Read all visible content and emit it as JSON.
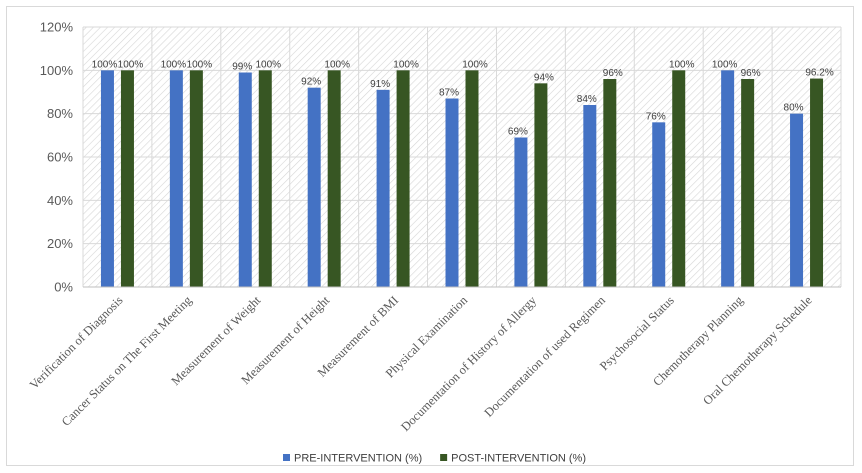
{
  "chart_data": {
    "type": "bar",
    "title": "",
    "xlabel": "",
    "ylabel": "",
    "ylim": [
      0,
      120
    ],
    "yticks": [
      0,
      20,
      40,
      60,
      80,
      100,
      120
    ],
    "ytick_labels": [
      "0%",
      "20%",
      "40%",
      "60%",
      "80%",
      "100%",
      "120%"
    ],
    "grid": true,
    "legend_position": "bottom",
    "categories": [
      "Verification of Diagnosis",
      "Cancer Status on The First Meeting",
      "Measurement of Weight",
      "Measurement of Height",
      "Measurement of BMI",
      "Physical Examination",
      "Documentation of History of Allergy",
      "Documentation of used Regimen",
      "Psychosocial Status",
      "Chemotherapy Planning",
      "Oral Chemotherapy Schedule"
    ],
    "series": [
      {
        "name": "PRE-INTERVENTION (%)",
        "color": "#4472c4",
        "values": [
          100,
          100,
          99,
          92,
          91,
          87,
          69,
          84,
          76,
          100,
          80
        ],
        "labels": [
          "100%",
          "100%",
          "99%",
          "92%",
          "91%",
          "87%",
          "69%",
          "84%",
          "76%",
          "100%",
          "80%"
        ]
      },
      {
        "name": "POST-INTERVENTION (%)",
        "color": "#375623",
        "values": [
          100,
          100,
          100,
          100,
          100,
          100,
          94,
          96,
          100,
          96,
          96.2
        ],
        "labels": [
          "100%",
          "100%",
          "100%",
          "100%",
          "100%",
          "100%",
          "94%",
          "96%",
          "100%",
          "96%",
          "96.2%"
        ]
      }
    ]
  }
}
